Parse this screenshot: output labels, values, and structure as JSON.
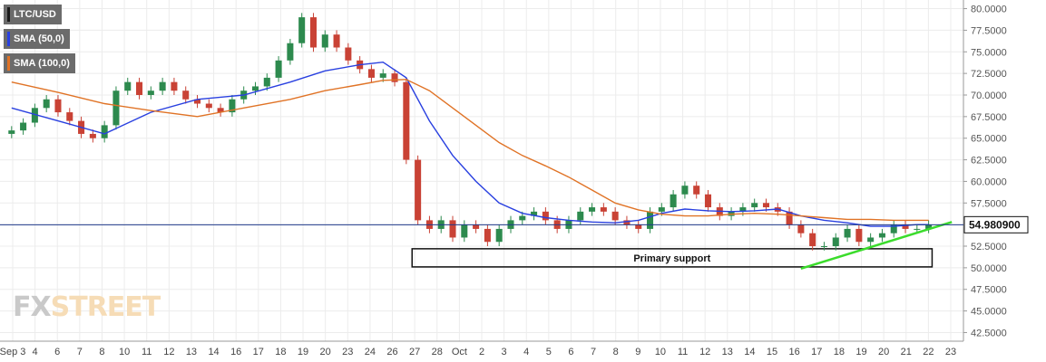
{
  "legend": [
    {
      "label": "LTC/USD",
      "color": "#1a1a1a"
    },
    {
      "label": "SMA (50,0)",
      "color": "#2940e0"
    },
    {
      "label": "SMA (100,0)",
      "color": "#e07326"
    }
  ],
  "watermark": {
    "part1": "FX",
    "part2": "STREET"
  },
  "colors": {
    "up": "#2d8a4e",
    "down": "#c94235",
    "sma50": "#2940e0",
    "sma100": "#e07326",
    "trendline": "#3bdc2c",
    "price_line": "#1f3a8a",
    "grid": "#ececec"
  },
  "annotations": {
    "support_label": "Primary support",
    "current_price": "54.980900"
  },
  "chart_data": {
    "type": "line",
    "title": "",
    "symbol": "LTC/USD",
    "ylim": [
      41.5,
      81.0
    ],
    "y_ticks": [
      "42.5000",
      "45.0000",
      "47.5000",
      "50.0000",
      "52.5000",
      "55.0000",
      "57.5000",
      "60.0000",
      "62.5000",
      "65.0000",
      "67.5000",
      "70.0000",
      "72.5000",
      "75.0000",
      "77.5000",
      "80.0000"
    ],
    "x_ticks": [
      "Sep 3",
      "4",
      "6",
      "7",
      "8",
      "10",
      "11",
      "12",
      "13",
      "14",
      "16",
      "17",
      "18",
      "19",
      "20",
      "23",
      "24",
      "26",
      "27",
      "28",
      "Oct",
      "2",
      "3",
      "4",
      "5",
      "6",
      "7",
      "8",
      "9",
      "10",
      "11",
      "12",
      "13",
      "14",
      "15",
      "16",
      "17",
      "18",
      "19",
      "20",
      "21",
      "22",
      "23"
    ],
    "price_series": [
      [
        0,
        65.9
      ],
      [
        1,
        66.8
      ],
      [
        2,
        68.5
      ],
      [
        3,
        69.5
      ],
      [
        4,
        68.0
      ],
      [
        5,
        67.0
      ],
      [
        6,
        65.5
      ],
      [
        7,
        65.0
      ],
      [
        8,
        66.5
      ],
      [
        9,
        70.5
      ],
      [
        10,
        71.5
      ],
      [
        11,
        70.0
      ],
      [
        12,
        70.5
      ],
      [
        13,
        71.5
      ],
      [
        14,
        70.5
      ],
      [
        15,
        69.5
      ],
      [
        16,
        69.0
      ],
      [
        17,
        68.5
      ],
      [
        18,
        68.0
      ],
      [
        19,
        69.5
      ],
      [
        20,
        70.5
      ],
      [
        21,
        71.0
      ],
      [
        22,
        72.0
      ],
      [
        23,
        74.0
      ],
      [
        24,
        76.0
      ],
      [
        25,
        79.0
      ],
      [
        26,
        75.5
      ],
      [
        27,
        77.0
      ],
      [
        28,
        75.5
      ],
      [
        29,
        74.0
      ],
      [
        30,
        73.0
      ],
      [
        31,
        72.0
      ],
      [
        32,
        72.5
      ],
      [
        33,
        71.5
      ],
      [
        34,
        62.5
      ],
      [
        35,
        55.5
      ],
      [
        36,
        54.5
      ],
      [
        37,
        55.5
      ],
      [
        38,
        53.5
      ],
      [
        39,
        55.0
      ],
      [
        40,
        54.5
      ],
      [
        41,
        53.0
      ],
      [
        42,
        54.5
      ],
      [
        43,
        55.5
      ],
      [
        44,
        56.0
      ],
      [
        45,
        56.5
      ],
      [
        46,
        55.5
      ],
      [
        47,
        54.5
      ],
      [
        48,
        55.5
      ],
      [
        49,
        56.5
      ],
      [
        50,
        57.0
      ],
      [
        51,
        56.5
      ],
      [
        52,
        55.5
      ],
      [
        53,
        55.0
      ],
      [
        54,
        54.5
      ],
      [
        55,
        56.5
      ],
      [
        56,
        57.0
      ],
      [
        57,
        58.5
      ],
      [
        58,
        59.5
      ],
      [
        59,
        58.5
      ],
      [
        60,
        57.0
      ],
      [
        61,
        56.0
      ],
      [
        62,
        56.5
      ],
      [
        63,
        57.0
      ],
      [
        64,
        57.5
      ],
      [
        65,
        57.0
      ],
      [
        66,
        56.5
      ],
      [
        67,
        55.0
      ],
      [
        68,
        54.0
      ],
      [
        69,
        52.5
      ],
      [
        70,
        52.5
      ],
      [
        71,
        53.5
      ],
      [
        72,
        54.5
      ],
      [
        73,
        53.0
      ],
      [
        74,
        53.5
      ],
      [
        75,
        54.0
      ],
      [
        76,
        55.0
      ],
      [
        77,
        54.5
      ],
      [
        78,
        54.5
      ],
      [
        79,
        55.0
      ]
    ],
    "series": [
      {
        "name": "SMA (50,0)",
        "values": [
          [
            0,
            68.5
          ],
          [
            4,
            67.0
          ],
          [
            8,
            65.5
          ],
          [
            12,
            68.0
          ],
          [
            16,
            69.5
          ],
          [
            20,
            70.0
          ],
          [
            24,
            71.5
          ],
          [
            27,
            72.8
          ],
          [
            30,
            73.5
          ],
          [
            32,
            73.8
          ],
          [
            34,
            72.0
          ],
          [
            36,
            67.0
          ],
          [
            38,
            63.0
          ],
          [
            40,
            60.0
          ],
          [
            42,
            57.5
          ],
          [
            44,
            56.3
          ],
          [
            46,
            55.8
          ],
          [
            48,
            55.5
          ],
          [
            50,
            55.3
          ],
          [
            52,
            55.2
          ],
          [
            54,
            55.5
          ],
          [
            56,
            56.3
          ],
          [
            58,
            56.8
          ],
          [
            60,
            56.6
          ],
          [
            62,
            56.5
          ],
          [
            64,
            56.6
          ],
          [
            66,
            56.8
          ],
          [
            68,
            56.0
          ],
          [
            70,
            55.5
          ],
          [
            72,
            55.2
          ],
          [
            74,
            54.8
          ],
          [
            76,
            54.8
          ],
          [
            78,
            55.0
          ],
          [
            79,
            55.0
          ]
        ]
      },
      {
        "name": "SMA (100,0)",
        "values": [
          [
            0,
            71.5
          ],
          [
            4,
            70.3
          ],
          [
            8,
            69.0
          ],
          [
            12,
            68.2
          ],
          [
            16,
            67.5
          ],
          [
            20,
            68.5
          ],
          [
            24,
            69.5
          ],
          [
            27,
            70.5
          ],
          [
            30,
            71.2
          ],
          [
            32,
            71.7
          ],
          [
            34,
            71.8
          ],
          [
            36,
            70.5
          ],
          [
            38,
            68.5
          ],
          [
            40,
            66.5
          ],
          [
            42,
            64.5
          ],
          [
            44,
            63.0
          ],
          [
            46,
            61.8
          ],
          [
            48,
            60.5
          ],
          [
            50,
            59.0
          ],
          [
            52,
            57.5
          ],
          [
            54,
            56.7
          ],
          [
            56,
            56.2
          ],
          [
            58,
            56.0
          ],
          [
            60,
            56.0
          ],
          [
            62,
            56.2
          ],
          [
            64,
            56.3
          ],
          [
            66,
            56.2
          ],
          [
            68,
            56.0
          ],
          [
            70,
            55.8
          ],
          [
            72,
            55.6
          ],
          [
            74,
            55.6
          ],
          [
            76,
            55.5
          ],
          [
            78,
            55.5
          ],
          [
            79,
            55.5
          ]
        ]
      }
    ],
    "current_price": 54.9809,
    "support_zone": {
      "x_start": 35,
      "x_end": 79,
      "y_low": 50.1,
      "y_high": 52.2,
      "label": "Primary support"
    },
    "trendline": {
      "start": [
        68,
        49.9
      ],
      "end": [
        81,
        55.3
      ]
    }
  }
}
